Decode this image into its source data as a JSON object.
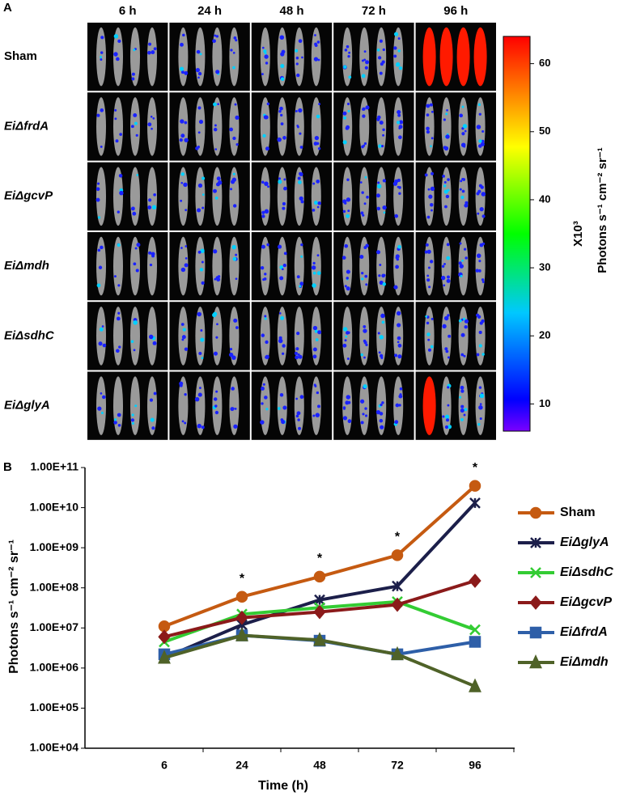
{
  "panel_a": {
    "label": "A",
    "columns": [
      "6 h",
      "24 h",
      "48 h",
      "72 h",
      "96 h"
    ],
    "rows": [
      "Sham",
      "EiΔfrdA",
      "EiΔgcvP",
      "EiΔmdh",
      "EiΔsdhC",
      "EiΔglyA"
    ],
    "colorbar": {
      "lim": [
        6,
        64
      ],
      "ticks": [
        10,
        20,
        30,
        40,
        50,
        60
      ],
      "multiplier_label": "X10³",
      "label": "Photons s⁻¹ cm⁻² sr⁻¹"
    }
  },
  "chart_data": {
    "type": "line",
    "panel_label": "B",
    "categories": [
      "6",
      "24",
      "48",
      "72",
      "96"
    ],
    "x_label": "Time (h)",
    "y_label": "Photons s⁻¹ cm⁻² sr⁻¹",
    "log_scale": true,
    "ylim": [
      10000,
      100000000000
    ],
    "yticks": [
      {
        "value": 10000,
        "label": "1.00E+04"
      },
      {
        "value": 100000,
        "label": "1.00E+05"
      },
      {
        "value": 1000000,
        "label": "1.00E+06"
      },
      {
        "value": 10000000,
        "label": "1.00E+07"
      },
      {
        "value": 100000000,
        "label": "1.00E+08"
      },
      {
        "value": 1000000000,
        "label": "1.00E+09"
      },
      {
        "value": 10000000000,
        "label": "1.00E+10"
      },
      {
        "value": 100000000000,
        "label": "1.00E+11"
      }
    ],
    "legend": "right",
    "series": [
      {
        "name": "Sham",
        "color": "#c55a11",
        "marker": "circle",
        "values": [
          11000000,
          60000000,
          190000000,
          650000000,
          35000000000
        ]
      },
      {
        "name": "EiΔglyA",
        "color": "#1c1f4a",
        "marker": "asterisk",
        "values": [
          1800000,
          12000000,
          50000000,
          110000000,
          13000000000
        ]
      },
      {
        "name": "EiΔsdhC",
        "color": "#33cc33",
        "marker": "x",
        "values": [
          4500000,
          22000000,
          32000000,
          45000000,
          9000000
        ]
      },
      {
        "name": "EiΔgcvP",
        "color": "#8b1a1a",
        "marker": "diamond",
        "values": [
          6000000,
          18000000,
          25000000,
          38000000,
          150000000
        ]
      },
      {
        "name": "EiΔfrdA",
        "color": "#2e5fa8",
        "marker": "square",
        "values": [
          2200000,
          6500000,
          4800000,
          2200000,
          4500000
        ]
      },
      {
        "name": "EiΔmdh",
        "color": "#4f6228",
        "marker": "triangle",
        "values": [
          1800000,
          6500000,
          5000000,
          2200000,
          350000
        ]
      }
    ],
    "annotations": [
      {
        "text": "*",
        "x": "24"
      },
      {
        "text": "*",
        "x": "48"
      },
      {
        "text": "*",
        "x": "72"
      },
      {
        "text": "*",
        "x": "96"
      }
    ]
  }
}
